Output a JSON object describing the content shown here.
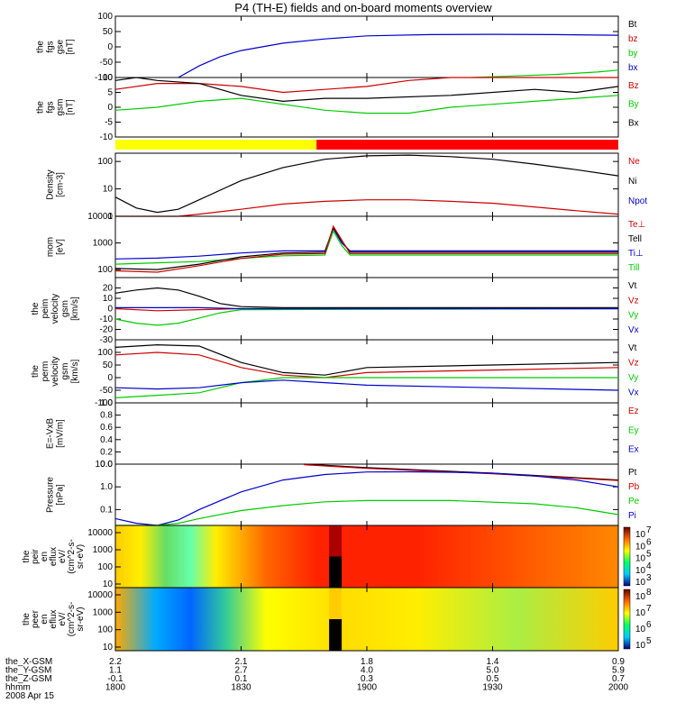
{
  "title": "P4 (TH-E) fields and on-board moments overview",
  "date": "2008 Apr 15",
  "colors": {
    "black": "#000000",
    "red": "#cc0000",
    "green": "#00cc00",
    "blue": "#0000cc",
    "yellow": "#ffff00",
    "bar_red": "#ff0000"
  },
  "chart_data": {
    "type": "line",
    "time_range": [
      "1800",
      "2000"
    ],
    "time_ticks": [
      "1800",
      "1830",
      "1900",
      "1930",
      "2000"
    ],
    "panels": [
      {
        "id": "fgs_gse",
        "ylabel": [
          "the",
          "fgs",
          "gse",
          "[nT]"
        ],
        "ylim": [
          -100,
          100
        ],
        "yticks": [
          "100",
          "50",
          "0",
          "-50",
          "-100"
        ],
        "legend": [
          {
            "text": "Bt",
            "color": "black"
          },
          {
            "text": "bz",
            "color": "red"
          },
          {
            "text": "by",
            "color": "green"
          },
          {
            "text": "bx",
            "color": "blue"
          }
        ],
        "series": [
          {
            "color": "blue",
            "x": [
              1815,
              1820,
              1825,
              1830,
              1840,
              1850,
              1900,
              1915,
              1930,
              1945,
              2000
            ],
            "y": [
              -100,
              -62,
              -32,
              -12,
              12,
              26,
              36,
              40,
              41,
              40,
              38
            ]
          },
          {
            "color": "green",
            "x": [
              1925,
              1935,
              1945,
              1955,
              2000
            ],
            "y": [
              -100,
              -95,
              -90,
              -82,
              -76
            ]
          }
        ]
      },
      {
        "id": "fgs_gsm",
        "ylabel": [
          "the",
          "fgs",
          "gsm",
          "[nT]"
        ],
        "ylim": [
          -10,
          10
        ],
        "yticks": [
          "10",
          "5",
          "0",
          "-5",
          "-10"
        ],
        "legend": [
          {
            "text": "Bz",
            "color": "red"
          },
          {
            "text": "By",
            "color": "green"
          },
          {
            "text": "Bx",
            "color": "black"
          }
        ],
        "series": [
          {
            "color": "red",
            "x": [
              1800,
              1810,
              1820,
              1830,
              1840,
              1850,
              1900,
              1910,
              1920,
              1930,
              1940,
              1950,
              2000
            ],
            "y": [
              6,
              8,
              8,
              7,
              5,
              6,
              7,
              9,
              10,
              12,
              11,
              12,
              11
            ]
          },
          {
            "color": "black",
            "x": [
              1800,
              1805,
              1810,
              1820,
              1830,
              1840,
              1850,
              1900,
              1920,
              1940,
              1950,
              2000
            ],
            "y": [
              9,
              10,
              9,
              8,
              4,
              2,
              3,
              3,
              4,
              6,
              5,
              7
            ]
          },
          {
            "color": "green",
            "x": [
              1800,
              1810,
              1820,
              1830,
              1840,
              1850,
              1900,
              1910,
              1920,
              1930,
              1940,
              1950,
              2000
            ],
            "y": [
              -1,
              0,
              2,
              3,
              1,
              -1,
              -2,
              -2,
              0,
              1,
              2,
              3,
              4
            ]
          }
        ]
      },
      {
        "id": "density",
        "ylabel": [
          "Density",
          "[cm-3]"
        ],
        "ylim": [
          1,
          200
        ],
        "yscale": "log",
        "yticks": [
          "100",
          "10",
          "1"
        ],
        "legend": [
          {
            "text": "Ne",
            "color": "red"
          },
          {
            "text": "Ni",
            "color": "black"
          },
          {
            "text": "Npot",
            "color": "blue"
          }
        ],
        "series": [
          {
            "color": "black",
            "x": [
              1800,
              1805,
              1810,
              1815,
              1820,
              1830,
              1840,
              1850,
              1900,
              1910,
              1920,
              1930,
              1940,
              1950,
              2000
            ],
            "y": [
              5,
              2,
              1.4,
              1.8,
              4,
              20,
              60,
              120,
              160,
              170,
              150,
              120,
              80,
              50,
              30
            ]
          },
          {
            "color": "red",
            "x": [
              1800,
              1810,
              1815,
              1820,
              1830,
              1840,
              1850,
              1900,
              1910,
              1920,
              1930,
              1940,
              1950,
              2000
            ],
            "y": [
              1,
              1,
              1,
              1.2,
              1.8,
              2.8,
              3.5,
              4,
              4,
              3.5,
              3,
              2.2,
              1.6,
              1.2
            ]
          }
        ]
      },
      {
        "id": "temps",
        "ylabel": [
          "mom",
          "[eV]"
        ],
        "ylim": [
          50,
          10000
        ],
        "yscale": "log",
        "yticks": [
          "10000",
          "1000",
          "100"
        ],
        "legend": [
          {
            "text": "Te⊥",
            "color": "red"
          },
          {
            "text": "Tell",
            "color": "black"
          },
          {
            "text": "Ti⊥",
            "color": "blue"
          },
          {
            "text": "Till",
            "color": "green"
          }
        ],
        "series": [
          {
            "color": "blue",
            "x": [
              1800,
              1810,
              1820,
              1830,
              1840,
              1850,
              1852,
              1854,
              1856,
              1900,
              2000
            ],
            "y": [
              250,
              270,
              320,
              420,
              500,
              500,
              3500,
              1000,
              500,
              500,
              500
            ]
          },
          {
            "color": "green",
            "x": [
              1800,
              1810,
              1820,
              1830,
              1840,
              1850,
              1852,
              1854,
              1856,
              1900,
              2000
            ],
            "y": [
              160,
              180,
              200,
              260,
              330,
              350,
              2800,
              800,
              350,
              350,
              350
            ]
          },
          {
            "color": "black",
            "x": [
              1800,
              1810,
              1820,
              1830,
              1840,
              1850,
              1852,
              1854,
              1856,
              1900,
              2000
            ],
            "y": [
              110,
              100,
              160,
              300,
              420,
              450,
              3800,
              1200,
              450,
              450,
              450
            ]
          },
          {
            "color": "red",
            "x": [
              1800,
              1810,
              1820,
              1830,
              1840,
              1850,
              1852,
              1854,
              1856,
              1900,
              2000
            ],
            "y": [
              90,
              80,
              140,
              260,
              380,
              400,
              4200,
              1300,
              400,
              400,
              400
            ]
          }
        ]
      },
      {
        "id": "peim_vel",
        "ylabel": [
          "the",
          "peim",
          "velocity",
          "gsm",
          "[km/s]"
        ],
        "ylim": [
          -30,
          30
        ],
        "yticks": [
          "20",
          "10",
          "0",
          "-10",
          "-20",
          "-30"
        ],
        "legend": [
          {
            "text": "Vt",
            "color": "black"
          },
          {
            "text": "Vz",
            "color": "red"
          },
          {
            "text": "Vy",
            "color": "green"
          },
          {
            "text": "Vx",
            "color": "blue"
          }
        ],
        "series": [
          {
            "color": "black",
            "x": [
              1800,
              1805,
              1810,
              1815,
              1820,
              1825,
              1830,
              1840,
              2000
            ],
            "y": [
              15,
              18,
              20,
              18,
              12,
              5,
              2,
              1,
              1
            ]
          },
          {
            "color": "red",
            "x": [
              1800,
              1810,
              1820,
              1830,
              2000
            ],
            "y": [
              0,
              -2,
              -1,
              0,
              0
            ]
          },
          {
            "color": "green",
            "x": [
              1800,
              1805,
              1810,
              1815,
              1820,
              1825,
              1830,
              2000
            ],
            "y": [
              -10,
              -14,
              -16,
              -14,
              -9,
              -4,
              -1,
              0
            ]
          },
          {
            "color": "blue",
            "x": [
              1800,
              1820,
              1830,
              2000
            ],
            "y": [
              1,
              1,
              0,
              0
            ]
          }
        ]
      },
      {
        "id": "perm_vel",
        "ylabel": [
          "the",
          "perm",
          "velocity",
          "gsm",
          "[km/s]"
        ],
        "ylim": [
          -100,
          150
        ],
        "yticks": [
          "100",
          "50",
          "0",
          "-50",
          "-100"
        ],
        "legend": [
          {
            "text": "Vt",
            "color": "black"
          },
          {
            "text": "Vz",
            "color": "red"
          },
          {
            "text": "Vy",
            "color": "green"
          },
          {
            "text": "Vx",
            "color": "blue"
          }
        ],
        "series": [
          {
            "color": "black",
            "x": [
              1800,
              1810,
              1820,
              1830,
              1840,
              1850,
              1900,
              1930,
              2000
            ],
            "y": [
              120,
              130,
              125,
              60,
              20,
              10,
              40,
              50,
              60
            ]
          },
          {
            "color": "red",
            "x": [
              1800,
              1810,
              1820,
              1830,
              1840,
              1850,
              1900,
              1930,
              2000
            ],
            "y": [
              90,
              100,
              90,
              40,
              10,
              0,
              20,
              30,
              40
            ]
          },
          {
            "color": "green",
            "x": [
              1800,
              1810,
              1820,
              1830,
              1840,
              1850,
              1900,
              1930,
              2000
            ],
            "y": [
              -80,
              -70,
              -60,
              -20,
              0,
              0,
              0,
              0,
              0
            ]
          },
          {
            "color": "blue",
            "x": [
              1800,
              1810,
              1820,
              1830,
              1840,
              1850,
              1900,
              1930,
              2000
            ],
            "y": [
              -40,
              -45,
              -40,
              -20,
              -10,
              -20,
              -30,
              -40,
              -50
            ]
          }
        ]
      },
      {
        "id": "efield",
        "ylabel": [
          "E=-VxB",
          "[mV/m]"
        ],
        "ylim": [
          0,
          1
        ],
        "yticks": [
          "1.0",
          "0.8",
          "0.6",
          "0.4",
          "0.2",
          "0.0"
        ],
        "legend": [
          {
            "text": "Ez",
            "color": "red"
          },
          {
            "text": "Ey",
            "color": "green"
          },
          {
            "text": "Ex",
            "color": "blue"
          }
        ],
        "series": []
      },
      {
        "id": "pressure",
        "ylabel": [
          "Pressure",
          "[nPa]"
        ],
        "ylim": [
          0.02,
          10
        ],
        "yscale": "log",
        "yticks": [
          "10.0",
          "1.0",
          "0.1"
        ],
        "legend": [
          {
            "text": "Pt",
            "color": "black"
          },
          {
            "text": "Pb",
            "color": "red"
          },
          {
            "text": "Pe",
            "color": "green"
          },
          {
            "text": "Pi",
            "color": "blue"
          }
        ],
        "series": [
          {
            "color": "black",
            "x": [
              1845,
              1900,
              1930,
              2000
            ],
            "y": [
              10,
              7,
              4,
              2
            ]
          },
          {
            "color": "red",
            "x": [
              1845,
              1900,
              1930,
              2000
            ],
            "y": [
              9.5,
              6.5,
              3.8,
              1.9
            ]
          },
          {
            "color": "blue",
            "x": [
              1800,
              1805,
              1810,
              1815,
              1820,
              1830,
              1840,
              1850,
              1900,
              1910,
              1920,
              1930,
              1940,
              1950,
              2000
            ],
            "y": [
              0.04,
              0.025,
              0.02,
              0.035,
              0.1,
              0.6,
              2,
              3.5,
              4.5,
              4.6,
              4.4,
              4,
              3,
              2,
              1
            ]
          },
          {
            "color": "green",
            "x": [
              1800,
              1810,
              1815,
              1820,
              1830,
              1840,
              1850,
              1900,
              1920,
              1940,
              1950,
              2000
            ],
            "y": [
              0.02,
              0.02,
              0.025,
              0.04,
              0.09,
              0.15,
              0.22,
              0.25,
              0.25,
              0.18,
              0.12,
              0.06
            ]
          }
        ]
      }
    ],
    "spectrograms": [
      {
        "id": "peir",
        "ylabel": [
          "the",
          "peir",
          "en",
          "eflux",
          "eV/",
          "(cm^2-s-",
          "sr-eV)"
        ],
        "yticks": [
          "10000",
          "1000",
          "100",
          "10"
        ],
        "colorbar_ticks": [
          "10",
          "10",
          "10",
          "10",
          "10"
        ],
        "colorbar_exp": [
          "7",
          "6",
          "5",
          "4",
          "3"
        ]
      },
      {
        "id": "peer",
        "ylabel": [
          "the",
          "peer",
          "en",
          "eflux",
          "eV/",
          "(cm^2-s-",
          "sr-eV)"
        ],
        "yticks": [
          "10000",
          "1000",
          "100",
          "10"
        ],
        "colorbar_ticks": [
          "10",
          "10",
          "10",
          "10"
        ],
        "colorbar_exp": [
          "8",
          "7",
          "6",
          "5"
        ]
      }
    ],
    "ephemeris": {
      "labels": [
        "the_X-GSM",
        "the_Y-GSM",
        "the_Z-GSM",
        "hhmm"
      ],
      "rows": [
        [
          "2.2",
          "2.1",
          "1.8",
          "1.4",
          "0.9"
        ],
        [
          "1.1",
          "2.7",
          "4.0",
          "5.0",
          "5.9"
        ],
        [
          "-0.1",
          "0.1",
          "0.3",
          "0.5",
          "0.7"
        ],
        [
          "1800",
          "1830",
          "1900",
          "1930",
          "2000"
        ]
      ]
    }
  }
}
